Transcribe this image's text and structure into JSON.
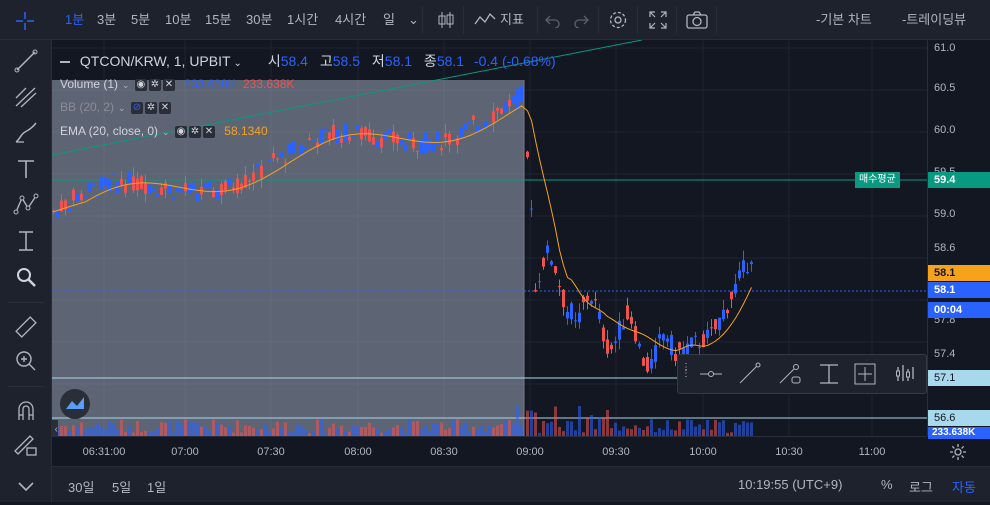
{
  "toolbar": {
    "intervals": [
      {
        "label": "1분",
        "active": true
      },
      {
        "label": "3분",
        "active": false
      },
      {
        "label": "5분",
        "active": false
      },
      {
        "label": "10분",
        "active": false
      },
      {
        "label": "15분",
        "active": false
      },
      {
        "label": "30분",
        "active": false
      },
      {
        "label": "1시간",
        "active": false
      },
      {
        "label": "4시간",
        "active": false
      },
      {
        "label": "일",
        "active": false
      }
    ],
    "indicator_label": "지표",
    "basic_chart": "-기본 차트",
    "tradingview": "-트레이딩뷰"
  },
  "legend": {
    "symbol": "QTCON/KRW, 1, UPBIT",
    "open_label": "시",
    "open": "58.4",
    "high_label": "고",
    "high": "58.5",
    "low_label": "저",
    "low": "58.1",
    "close_label": "종",
    "close": "58.1",
    "change": "-0.4 (-0.68%)",
    "volume": "Volume (1)",
    "volume_v1": "233.638K",
    "volume_v2": "233.638K",
    "bb": "BB (20, 2)",
    "ema": "EMA (20, close, 0)",
    "ema_value": "58.1340"
  },
  "price_axis": {
    "labels": [
      "61.0",
      "60.5",
      "60.0",
      "59.5",
      "59.0",
      "58.6",
      "58.1",
      "57.8",
      "57.4",
      "57.1",
      "56.6"
    ],
    "tag_avg_label": "매수평균",
    "tag_avg_value": "59.4",
    "tag_ema": "58.1",
    "tag_last": "58.1",
    "tag_countdown": "00:04",
    "tag_571": "57.1",
    "tag_566": "56.6",
    "tag_volume": "233.638K"
  },
  "time_axis": [
    "06:31:00",
    "07:00",
    "07:30",
    "08:00",
    "08:30",
    "09:00",
    "09:30",
    "10:00",
    "10:30",
    "11:00"
  ],
  "bottom": {
    "ranges": [
      "30일",
      "5일",
      "1일"
    ],
    "clock": "10:19:55 (UTC+9)",
    "percent": "%",
    "log": "로그",
    "auto": "자동"
  },
  "colors": {
    "up": "#ef5350",
    "down": "#2962ff",
    "ema": "#f7a21b",
    "accent": "#2962ff",
    "avg": "#089981"
  }
}
